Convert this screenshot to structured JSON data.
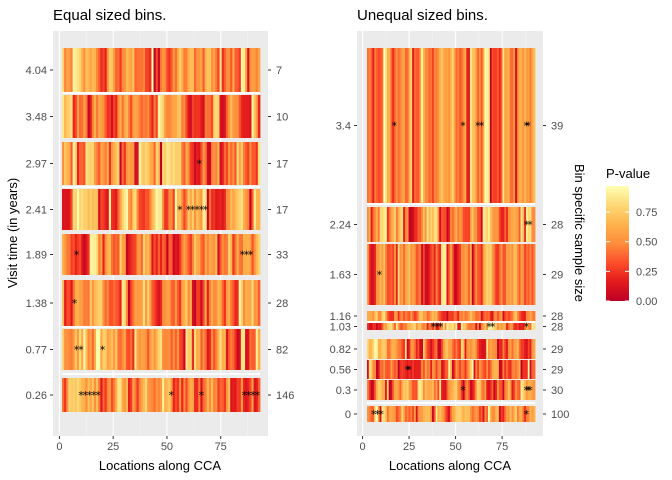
{
  "colors": {
    "panel_bg": "#EBEBEB",
    "grid_major": "#FFFFFF",
    "grid_minor": "#F3F3F3",
    "star": "#000000",
    "gradient": [
      "#BD0026",
      "#E31A1C",
      "#FC4E2A",
      "#FD8D3C",
      "#FEB24C",
      "#FED976",
      "#FFFFB2"
    ]
  },
  "legend": {
    "title": "P-value",
    "ticks": [
      "0.00",
      "0.25",
      "0.50",
      "0.75"
    ]
  },
  "chart_data": [
    {
      "type": "heatmap",
      "title": "Equal sized bins.",
      "xlabel": "Locations along CCA",
      "ylabel": "Visit time (in years)",
      "secondary_ylabel": "",
      "xlim": [
        -3,
        97
      ],
      "x_ticks": [
        "0",
        "25",
        "50",
        "75"
      ],
      "rows": [
        {
          "visit_time": "0.26",
          "sample_size": "146",
          "stars_at": [
            10,
            12,
            14,
            16,
            18,
            52,
            66,
            86,
            88,
            90,
            92
          ]
        },
        {
          "visit_time": "0.77",
          "sample_size": "82",
          "stars_at": [
            8,
            10,
            20
          ]
        },
        {
          "visit_time": "1.38",
          "sample_size": "28",
          "stars_at": [
            7
          ]
        },
        {
          "visit_time": "1.89",
          "sample_size": "33",
          "stars_at": [
            8,
            85,
            87,
            89
          ]
        },
        {
          "visit_time": "2.41",
          "sample_size": "17",
          "stars_at": [
            56,
            60,
            62,
            64,
            66,
            68
          ]
        },
        {
          "visit_time": "2.97",
          "sample_size": "17",
          "stars_at": [
            65
          ]
        },
        {
          "visit_time": "3.48",
          "sample_size": "10",
          "stars_at": []
        },
        {
          "visit_time": "4.04",
          "sample_size": "7",
          "stars_at": []
        }
      ]
    },
    {
      "type": "heatmap",
      "title": "Unequal sized bins.",
      "xlabel": "Locations along CCA",
      "ylabel": "",
      "secondary_ylabel": "Bin specific sample size",
      "xlim": [
        -3,
        97
      ],
      "x_ticks": [
        "0",
        "25",
        "50",
        "75"
      ],
      "rows": [
        {
          "visit_time": "0",
          "sample_size": "100",
          "stars_at": [
            6,
            8,
            10,
            88
          ]
        },
        {
          "visit_time": "0.3",
          "sample_size": "30",
          "stars_at": [
            54,
            88,
            89,
            90
          ]
        },
        {
          "visit_time": "0.56",
          "sample_size": "29",
          "stars_at": [
            24,
            25
          ]
        },
        {
          "visit_time": "0.82",
          "sample_size": "29",
          "stars_at": []
        },
        {
          "visit_time": "1.03",
          "sample_size": "28",
          "stars_at": [
            38,
            40,
            42,
            68,
            70,
            88
          ]
        },
        {
          "visit_time": "1.16",
          "sample_size": "28",
          "stars_at": []
        },
        {
          "visit_time": "1.63",
          "sample_size": "29",
          "stars_at": [
            9
          ]
        },
        {
          "visit_time": "2.24",
          "sample_size": "28",
          "stars_at": [
            88,
            90
          ]
        },
        {
          "visit_time": "3.4",
          "sample_size": "39",
          "stars_at": [
            17,
            54,
            62,
            64,
            88,
            89
          ]
        }
      ]
    }
  ]
}
